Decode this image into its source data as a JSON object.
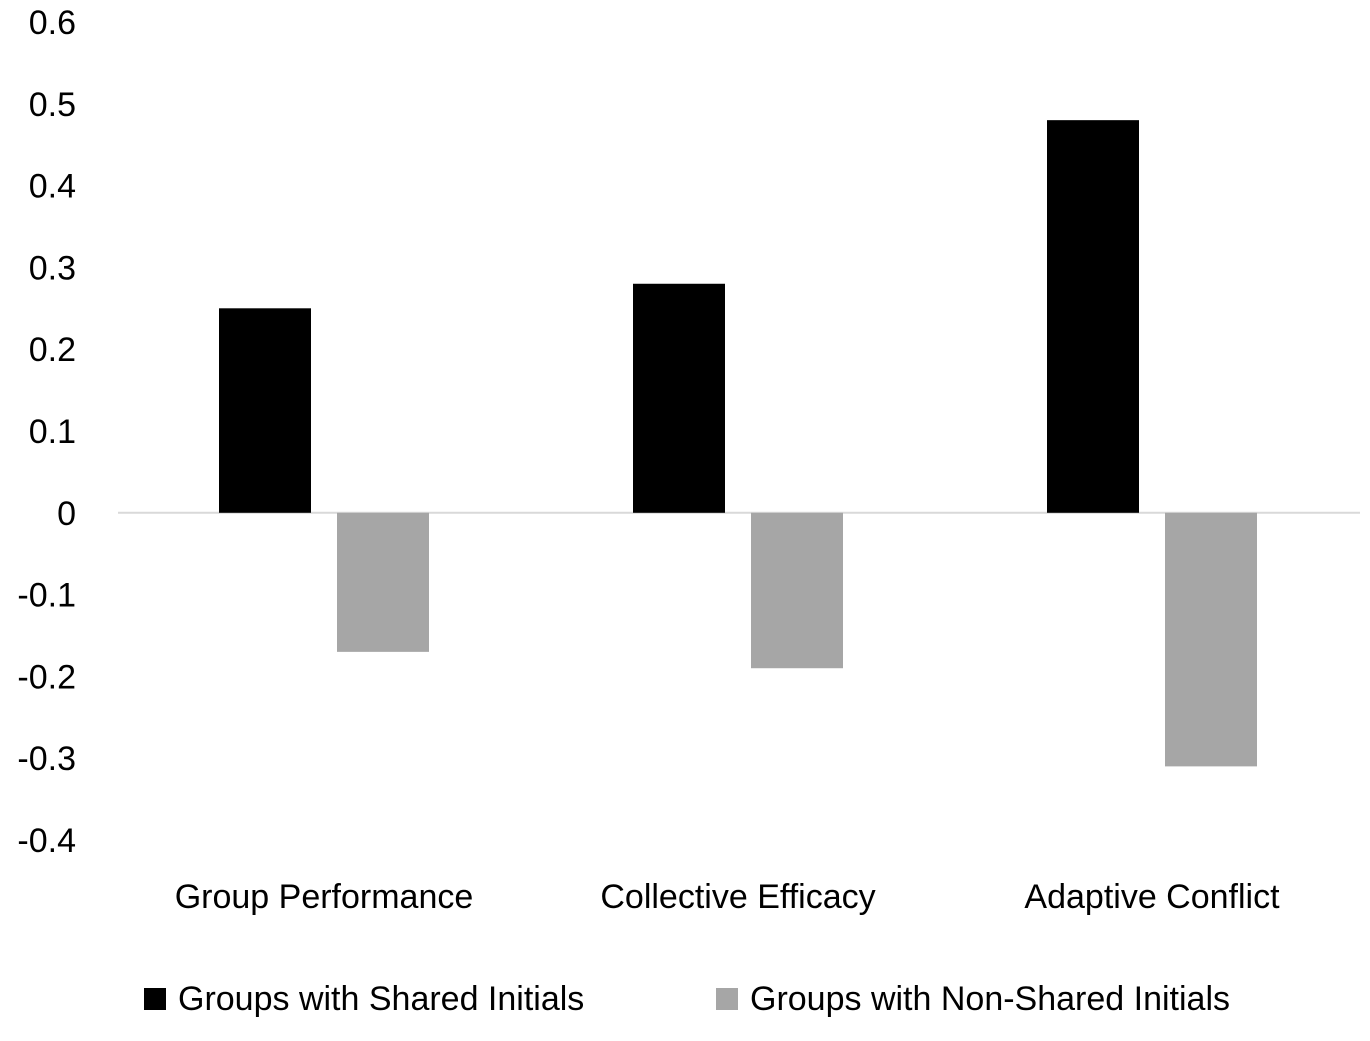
{
  "chart_data": {
    "type": "bar",
    "categories": [
      "Group Performance",
      "Collective Efficacy",
      "Adaptive Conflict"
    ],
    "series": [
      {
        "name": "Groups with Shared Initials",
        "values": [
          0.25,
          0.28,
          0.48
        ],
        "color": "#000000"
      },
      {
        "name": "Groups with Non-Shared Initials",
        "values": [
          -0.17,
          -0.19,
          -0.31
        ],
        "color": "#a6a6a6"
      }
    ],
    "ylim": [
      -0.4,
      0.6
    ],
    "yticks": [
      "0.6",
      "0.5",
      "0.4",
      "0.3",
      "0.2",
      "0.1",
      "0",
      "-0.1",
      "-0.2",
      "-0.3",
      "-0.4"
    ],
    "ytick_values": [
      0.6,
      0.5,
      0.4,
      0.3,
      0.2,
      0.1,
      0,
      -0.1,
      -0.2,
      -0.3,
      -0.4
    ],
    "grid": false,
    "legend_position": "bottom",
    "zero_line_color": "#d9d9d9"
  }
}
